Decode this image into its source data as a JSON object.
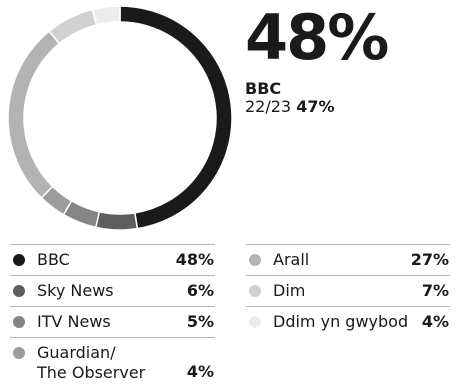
{
  "chart_data": {
    "type": "pie",
    "title": "",
    "headline": {
      "value_label": "48%",
      "name": "BBC",
      "previous_label": "22/23",
      "previous_value_label": "47%"
    },
    "series": [
      {
        "name": "BBC",
        "value": 48,
        "label": "48%",
        "color": "#1a1a1a"
      },
      {
        "name": "Sky News",
        "value": 6,
        "label": "6%",
        "color": "#5e5e5e"
      },
      {
        "name": "ITV News",
        "value": 5,
        "label": "5%",
        "color": "#858585"
      },
      {
        "name": "Guardian/\nThe Observer",
        "value": 4,
        "label": "4%",
        "color": "#9c9c9c"
      },
      {
        "name": "Arall",
        "value": 27,
        "label": "27%",
        "color": "#b3b3b3"
      },
      {
        "name": "Dim",
        "value": 7,
        "label": "7%",
        "color": "#d1d1d1"
      },
      {
        "name": "Ddim yn gwybod",
        "value": 4,
        "label": "4%",
        "color": "#ececec"
      }
    ]
  }
}
